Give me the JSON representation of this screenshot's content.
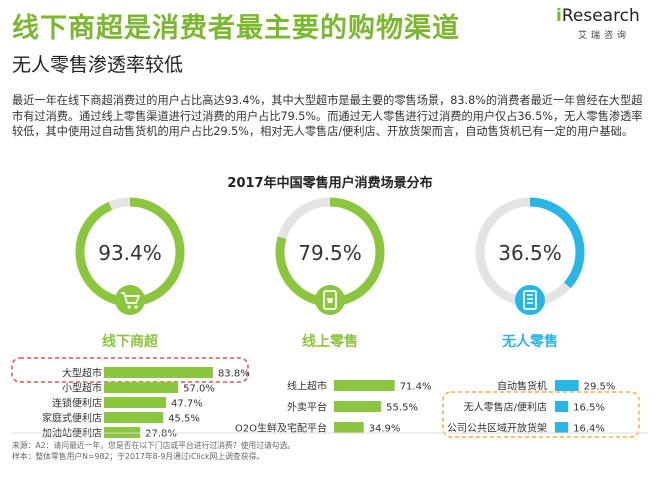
{
  "header": {
    "title": "线下商超是消费者最主要的购物渠道",
    "subtitle": "无人零售渗透率较低",
    "logo_main": "Research",
    "logo_i": "i",
    "logo_sub": "艾瑞咨询"
  },
  "paragraph": "最近一年在线下商超消费过的用户占比高达93.4%，其中大型超市是最主要的零售场景，83.8%的消费者最近一年曾经在大型超市有过消费。通过线上零售渠道进行过消费的用户占比79.5%。而通过无人零售进行过消费的用户仅占36.5%，无人零售渗透率较低，其中使用过自动售货机的用户占比29.5%，相对无人零售店/便利店、开放货架而言，自动售货机已有一定的用户基础。",
  "chart_title": "2017年中国零售用户消费场景分布",
  "footer": {
    "line1": "来源：A2：请问最近一年，您是否在以下门店或平台进行过消费？使用过请勾选。",
    "line2": "样本：整体零售用户N=982；于2017年8-9月通过iClick网上调查获得。"
  },
  "colors": {
    "green": "#8cc63f",
    "blue": "#29b6e6",
    "track": "#e4e4e4",
    "highlight_red": "#e8534a",
    "highlight_orange": "#f2b33d"
  },
  "chart_data": [
    {
      "type": "pie",
      "name": "线下商超",
      "value": 93.4,
      "value_label": "93.4%",
      "icon": "shopping-cart-icon",
      "color": "#8cc63f"
    },
    {
      "type": "pie",
      "name": "线上零售",
      "value": 79.5,
      "value_label": "79.5%",
      "icon": "mobile-shop-icon",
      "color": "#8cc63f"
    },
    {
      "type": "pie",
      "name": "无人零售",
      "value": 36.5,
      "value_label": "36.5%",
      "icon": "vending-machine-icon",
      "color": "#29b6e6"
    },
    {
      "type": "bar",
      "group": "线下商超",
      "categories": [
        "大型超市",
        "小型超市",
        "连锁便利店",
        "家庭式便利店",
        "加油站便利店"
      ],
      "values": [
        83.8,
        57.0,
        47.7,
        45.5,
        27.8
      ],
      "labels": [
        "83.8%",
        "57.0%",
        "47.7%",
        "45.5%",
        "27.8%"
      ],
      "highlight": [
        "大型超市"
      ]
    },
    {
      "type": "bar",
      "group": "线上零售",
      "categories": [
        "线上超市",
        "外卖平台",
        "O2O生鲜及宅配平台"
      ],
      "values": [
        71.4,
        55.5,
        34.9
      ],
      "labels": [
        "71.4%",
        "55.5%",
        "34.9%"
      ],
      "highlight": []
    },
    {
      "type": "bar",
      "group": "无人零售",
      "categories": [
        "自动售货机",
        "无人零售店/便利店",
        "公司公共区域开放货架"
      ],
      "values": [
        29.5,
        16.5,
        16.4
      ],
      "labels": [
        "29.5%",
        "16.5%",
        "16.4%"
      ],
      "highlight": [
        "无人零售店/便利店",
        "公司公共区域开放货架"
      ]
    }
  ]
}
